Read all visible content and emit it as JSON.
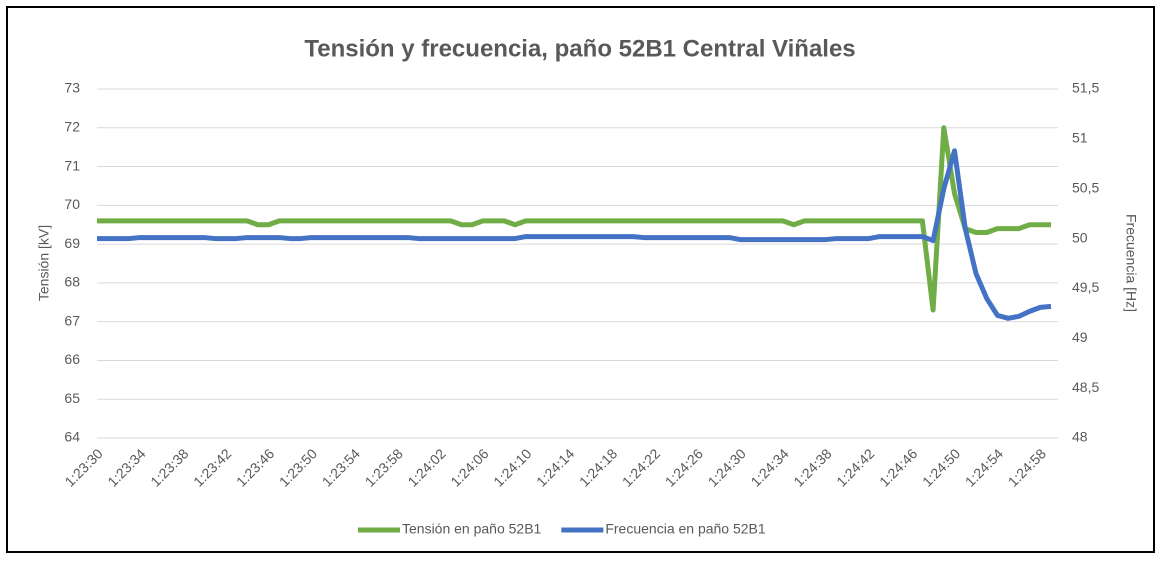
{
  "chart_data": {
    "type": "line",
    "title": "Tensión y frecuencia, paño 52B1 Central Viñales",
    "y_label": "Tensión [kV]",
    "y2_label": "Frecuencia [Hz]",
    "categories": [
      "1:23:30",
      null,
      null,
      null,
      "1:23:34",
      null,
      null,
      null,
      "1:23:38",
      null,
      null,
      null,
      "1:23:42",
      null,
      null,
      null,
      "1:23:46",
      null,
      null,
      null,
      "1:23:50",
      null,
      null,
      null,
      "1:23:54",
      null,
      null,
      null,
      "1:23:58",
      null,
      null,
      null,
      "1:24:02",
      null,
      null,
      null,
      "1:24:06",
      null,
      null,
      null,
      "1:24:10",
      null,
      null,
      null,
      "1:24:14",
      null,
      null,
      null,
      "1:24:18",
      null,
      null,
      null,
      "1:24:22",
      null,
      null,
      null,
      "1:24:26",
      null,
      null,
      null,
      "1:24:30",
      null,
      null,
      null,
      "1:24:34",
      null,
      null,
      null,
      "1:24:38",
      null,
      null,
      null,
      "1:24:42",
      null,
      null,
      null,
      "1:24:46",
      null,
      null,
      null,
      "1:24:50",
      null,
      null,
      null,
      "1:24:54",
      null,
      null,
      null,
      "1:24:58",
      null
    ],
    "series": [
      {
        "name": "Tensión en paño 52B1",
        "color": "#70ad47",
        "values": [
          69.6,
          69.6,
          69.6,
          69.6,
          69.6,
          69.6,
          69.6,
          69.6,
          69.6,
          69.6,
          69.6,
          69.6,
          69.6,
          69.6,
          69.6,
          69.5,
          69.5,
          69.6,
          69.6,
          69.6,
          69.6,
          69.6,
          69.6,
          69.6,
          69.6,
          69.6,
          69.6,
          69.6,
          69.6,
          69.6,
          69.6,
          69.6,
          69.6,
          69.6,
          69.5,
          69.5,
          69.6,
          69.6,
          69.6,
          69.5,
          69.6,
          69.6,
          69.6,
          69.6,
          69.6,
          69.6,
          69.6,
          69.6,
          69.6,
          69.6,
          69.6,
          69.6,
          69.6,
          69.6,
          69.6,
          69.6,
          69.6,
          69.6,
          69.6,
          69.6,
          69.6,
          69.6,
          69.6,
          69.6,
          69.6,
          69.5,
          69.6,
          69.6,
          69.6,
          69.6,
          69.6,
          69.6,
          69.6,
          69.6,
          69.6,
          69.6,
          69.6,
          69.6,
          67.3,
          72.0,
          70.3,
          69.4,
          69.3,
          69.3,
          69.4,
          69.4,
          69.4,
          69.5,
          69.5,
          69.5
        ]
      },
      {
        "name": "Frecuencia en paño 52B1",
        "color": "#4472c4",
        "axis": "y2",
        "values": [
          50.0,
          50.0,
          50.0,
          50.0,
          50.01,
          50.01,
          50.01,
          50.01,
          50.01,
          50.01,
          50.01,
          50.0,
          50.0,
          50.0,
          50.01,
          50.01,
          50.01,
          50.01,
          50.0,
          50.0,
          50.01,
          50.01,
          50.01,
          50.01,
          50.01,
          50.01,
          50.01,
          50.01,
          50.01,
          50.01,
          50.0,
          50.0,
          50.0,
          50.0,
          50.0,
          50.0,
          50.0,
          50.0,
          50.0,
          50.0,
          50.02,
          50.02,
          50.02,
          50.02,
          50.02,
          50.02,
          50.02,
          50.02,
          50.02,
          50.02,
          50.02,
          50.01,
          50.01,
          50.01,
          50.01,
          50.01,
          50.01,
          50.01,
          50.01,
          50.01,
          49.99,
          49.99,
          49.99,
          49.99,
          49.99,
          49.99,
          49.99,
          49.99,
          49.99,
          50.0,
          50.0,
          50.0,
          50.0,
          50.02,
          50.02,
          50.02,
          50.02,
          50.02,
          49.98,
          50.5,
          50.88,
          50.1,
          49.65,
          49.4,
          49.23,
          49.2,
          49.22,
          49.27,
          49.31,
          49.32
        ]
      }
    ],
    "ylim": [
      64,
      73
    ],
    "yticks": [
      64,
      65,
      66,
      67,
      68,
      69,
      70,
      71,
      72,
      73
    ],
    "y2lim": [
      48,
      51.5
    ],
    "y2ticks": [
      48,
      {
        "value": 48.5,
        "label": "48,5"
      },
      49,
      {
        "value": 49.5,
        "label": "49,5"
      },
      50,
      {
        "value": 50.5,
        "label": "50,5"
      },
      51,
      {
        "value": 51.5,
        "label": "51,5"
      }
    ],
    "grid": true,
    "legend": "bottom"
  }
}
